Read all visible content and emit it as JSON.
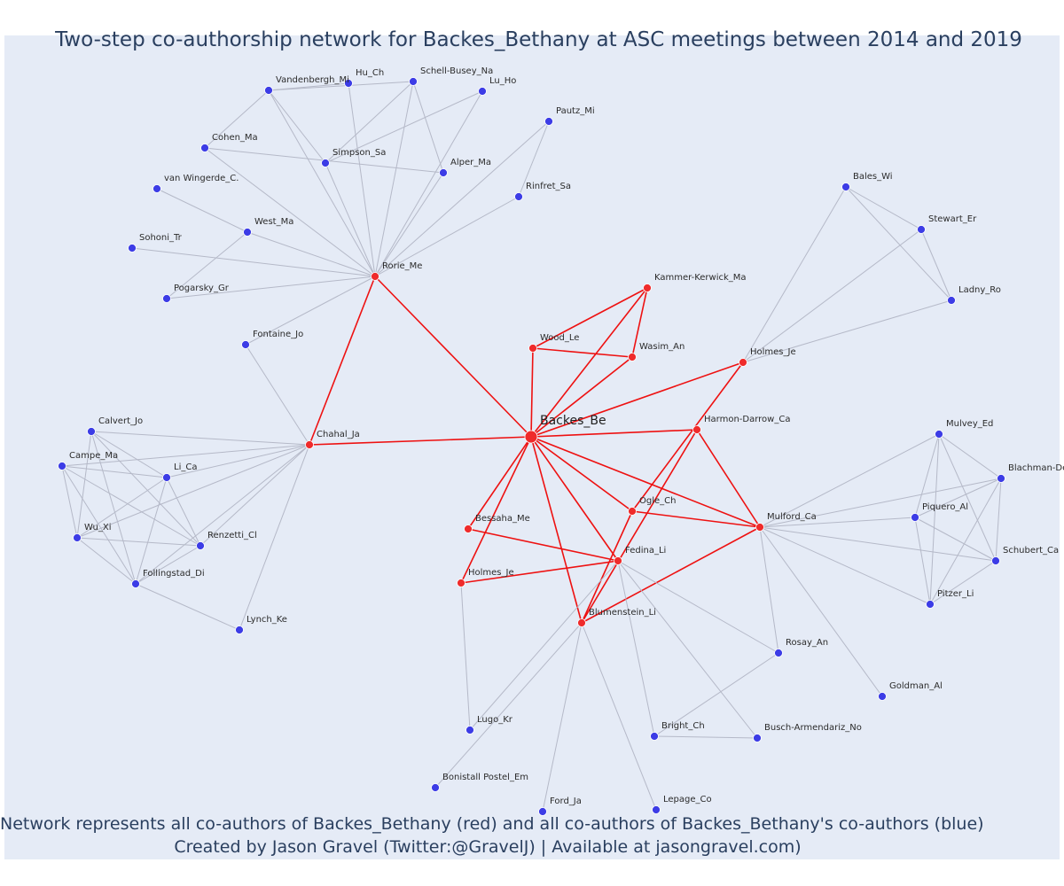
{
  "title": "Two-step co-authorship network for Backes_Bethany at ASC meetings between 2014 and 2019",
  "footer": {
    "line1": "Network represents all co-authors of Backes_Bethany (red) and all co-authors of Backes_Bethany's co-authors (blue)",
    "line2": "Created by Jason Gravel (Twitter:@GravelJ) | Available at jasongravel.com)"
  },
  "colors": {
    "background": "#e5ebf6",
    "coauthor_node": "#ef2b2b",
    "second_step_node": "#3c3ce6",
    "coauthor_edge": "#ee1111",
    "second_step_edge": "#b5b9c8",
    "text": "#2a3f5f"
  },
  "chart_data": {
    "type": "network",
    "focal": "Backes_Be",
    "nodes": [
      {
        "id": "Backes_Be",
        "group": "focal"
      },
      {
        "id": "Rorie_Me",
        "group": "coauthor"
      },
      {
        "id": "Chahal_Ja",
        "group": "coauthor"
      },
      {
        "id": "Kammer-Kerwick_Ma",
        "group": "coauthor"
      },
      {
        "id": "Wood_Le",
        "group": "coauthor"
      },
      {
        "id": "Wasim_An",
        "group": "coauthor"
      },
      {
        "id": "Holmes_Je",
        "group": "coauthor"
      },
      {
        "id": "Harmon-Darrow_Ca",
        "group": "coauthor"
      },
      {
        "id": "Ogle_Ch",
        "group": "coauthor"
      },
      {
        "id": "Bessaha_Me",
        "group": "coauthor"
      },
      {
        "id": "Mulford_Ca",
        "group": "coauthor"
      },
      {
        "id": "Fedina_Li",
        "group": "coauthor"
      },
      {
        "id": "Holmes_Je (2)",
        "label": "Holmes_Je",
        "group": "coauthor"
      },
      {
        "id": "Blumenstein_Li",
        "group": "coauthor"
      },
      {
        "id": "Vandenbergh_Mi",
        "group": "second"
      },
      {
        "id": "Hu_Ch",
        "group": "second"
      },
      {
        "id": "Schell-Busey_Na",
        "group": "second"
      },
      {
        "id": "Lu_Ho",
        "group": "second"
      },
      {
        "id": "Pautz_Mi",
        "group": "second"
      },
      {
        "id": "Cohen_Ma",
        "group": "second"
      },
      {
        "id": "Simpson_Sa",
        "group": "second"
      },
      {
        "id": "Alper_Ma",
        "group": "second"
      },
      {
        "id": "van Wingerde_C.",
        "group": "second"
      },
      {
        "id": "Rinfret_Sa",
        "group": "second"
      },
      {
        "id": "West_Ma",
        "group": "second"
      },
      {
        "id": "Sohoni_Tr",
        "group": "second"
      },
      {
        "id": "Pogarsky_Gr",
        "group": "second"
      },
      {
        "id": "Fontaine_Jo",
        "group": "second"
      },
      {
        "id": "Bales_Wi",
        "group": "second"
      },
      {
        "id": "Stewart_Er",
        "group": "second"
      },
      {
        "id": "Ladny_Ro",
        "group": "second"
      },
      {
        "id": "Calvert_Jo",
        "group": "second"
      },
      {
        "id": "Campe_Ma",
        "group": "second"
      },
      {
        "id": "Li_Ca",
        "group": "second"
      },
      {
        "id": "Wu_Xi",
        "group": "second"
      },
      {
        "id": "Renzetti_Cl",
        "group": "second"
      },
      {
        "id": "Follingstad_Di",
        "group": "second"
      },
      {
        "id": "Lynch_Ke",
        "group": "second"
      },
      {
        "id": "Mulvey_Ed",
        "group": "second"
      },
      {
        "id": "Blachman-De",
        "group": "second"
      },
      {
        "id": "Piquero_Al",
        "group": "second"
      },
      {
        "id": "Schubert_Ca",
        "group": "second"
      },
      {
        "id": "Pitzer_Li",
        "group": "second"
      },
      {
        "id": "Rosay_An",
        "group": "second"
      },
      {
        "id": "Goldman_Al",
        "group": "second"
      },
      {
        "id": "Lugo_Kr",
        "group": "second"
      },
      {
        "id": "Bright_Ch",
        "group": "second"
      },
      {
        "id": "Busch-Armendariz_No",
        "group": "second"
      },
      {
        "id": "Bonistall Postel_Em",
        "group": "second"
      },
      {
        "id": "Ford_Ja",
        "group": "second"
      },
      {
        "id": "Lepage_Co",
        "group": "second"
      }
    ],
    "edges": [
      [
        "Backes_Be",
        "Rorie_Me"
      ],
      [
        "Backes_Be",
        "Chahal_Ja"
      ],
      [
        "Backes_Be",
        "Kammer-Kerwick_Ma"
      ],
      [
        "Backes_Be",
        "Wood_Le"
      ],
      [
        "Backes_Be",
        "Wasim_An"
      ],
      [
        "Backes_Be",
        "Holmes_Je"
      ],
      [
        "Backes_Be",
        "Harmon-Darrow_Ca"
      ],
      [
        "Backes_Be",
        "Ogle_Ch"
      ],
      [
        "Backes_Be",
        "Bessaha_Me"
      ],
      [
        "Backes_Be",
        "Mulford_Ca"
      ],
      [
        "Backes_Be",
        "Fedina_Li"
      ],
      [
        "Backes_Be",
        "Holmes_Je (2)"
      ],
      [
        "Backes_Be",
        "Blumenstein_Li"
      ],
      [
        "Rorie_Me",
        "Chahal_Ja"
      ],
      [
        "Wood_Le",
        "Kammer-Kerwick_Ma"
      ],
      [
        "Wood_Le",
        "Wasim_An"
      ],
      [
        "Wasim_An",
        "Kammer-Kerwick_Ma"
      ],
      [
        "Harmon-Darrow_Ca",
        "Mulford_Ca"
      ],
      [
        "Harmon-Darrow_Ca",
        "Blumenstein_Li"
      ],
      [
        "Holmes_Je",
        "Ogle_Ch"
      ],
      [
        "Ogle_Ch",
        "Mulford_Ca"
      ],
      [
        "Ogle_Ch",
        "Blumenstein_Li"
      ],
      [
        "Bessaha_Me",
        "Fedina_Li"
      ],
      [
        "Holmes_Je (2)",
        "Fedina_Li"
      ],
      [
        "Mulford_Ca",
        "Blumenstein_Li"
      ],
      [
        "Rorie_Me",
        "Vandenbergh_Mi"
      ],
      [
        "Rorie_Me",
        "Hu_Ch"
      ],
      [
        "Rorie_Me",
        "Schell-Busey_Na"
      ],
      [
        "Rorie_Me",
        "Lu_Ho"
      ],
      [
        "Rorie_Me",
        "Pautz_Mi"
      ],
      [
        "Rorie_Me",
        "Cohen_Ma"
      ],
      [
        "Rorie_Me",
        "Simpson_Sa"
      ],
      [
        "Rorie_Me",
        "Alper_Ma"
      ],
      [
        "Rorie_Me",
        "Rinfret_Sa"
      ],
      [
        "Rorie_Me",
        "West_Ma"
      ],
      [
        "Rorie_Me",
        "Sohoni_Tr"
      ],
      [
        "Rorie_Me",
        "Pogarsky_Gr"
      ],
      [
        "Rorie_Me",
        "Fontaine_Jo"
      ],
      [
        "Vandenbergh_Mi",
        "Hu_Ch"
      ],
      [
        "Vandenbergh_Mi",
        "Schell-Busey_Na"
      ],
      [
        "Vandenbergh_Mi",
        "Simpson_Sa"
      ],
      [
        "Vandenbergh_Mi",
        "Cohen_Ma"
      ],
      [
        "Schell-Busey_Na",
        "Simpson_Sa"
      ],
      [
        "Schell-Busey_Na",
        "Alper_Ma"
      ],
      [
        "Lu_Ho",
        "Simpson_Sa"
      ],
      [
        "Cohen_Ma",
        "Alper_Ma"
      ],
      [
        "Pautz_Mi",
        "Rinfret_Sa"
      ],
      [
        "van Wingerde_C.",
        "West_Ma"
      ],
      [
        "West_Ma",
        "Pogarsky_Gr"
      ],
      [
        "Chahal_Ja",
        "Fontaine_Jo"
      ],
      [
        "Chahal_Ja",
        "Calvert_Jo"
      ],
      [
        "Chahal_Ja",
        "Campe_Ma"
      ],
      [
        "Chahal_Ja",
        "Li_Ca"
      ],
      [
        "Chahal_Ja",
        "Wu_Xi"
      ],
      [
        "Chahal_Ja",
        "Renzetti_Cl"
      ],
      [
        "Chahal_Ja",
        "Follingstad_Di"
      ],
      [
        "Chahal_Ja",
        "Lynch_Ke"
      ],
      [
        "Calvert_Jo",
        "Li_Ca"
      ],
      [
        "Calvert_Jo",
        "Wu_Xi"
      ],
      [
        "Calvert_Jo",
        "Renzetti_Cl"
      ],
      [
        "Calvert_Jo",
        "Follingstad_Di"
      ],
      [
        "Campe_Ma",
        "Li_Ca"
      ],
      [
        "Campe_Ma",
        "Wu_Xi"
      ],
      [
        "Campe_Ma",
        "Renzetti_Cl"
      ],
      [
        "Campe_Ma",
        "Follingstad_Di"
      ],
      [
        "Li_Ca",
        "Wu_Xi"
      ],
      [
        "Li_Ca",
        "Renzetti_Cl"
      ],
      [
        "Li_Ca",
        "Follingstad_Di"
      ],
      [
        "Wu_Xi",
        "Renzetti_Cl"
      ],
      [
        "Wu_Xi",
        "Follingstad_Di"
      ],
      [
        "Renzetti_Cl",
        "Follingstad_Di"
      ],
      [
        "Follingstad_Di",
        "Lynch_Ke"
      ],
      [
        "Holmes_Je",
        "Bales_Wi"
      ],
      [
        "Holmes_Je",
        "Stewart_Er"
      ],
      [
        "Holmes_Je",
        "Ladny_Ro"
      ],
      [
        "Bales_Wi",
        "Stewart_Er"
      ],
      [
        "Bales_Wi",
        "Ladny_Ro"
      ],
      [
        "Stewart_Er",
        "Ladny_Ro"
      ],
      [
        "Mulford_Ca",
        "Mulvey_Ed"
      ],
      [
        "Mulford_Ca",
        "Blachman-De"
      ],
      [
        "Mulford_Ca",
        "Piquero_Al"
      ],
      [
        "Mulford_Ca",
        "Schubert_Ca"
      ],
      [
        "Mulford_Ca",
        "Pitzer_Li"
      ],
      [
        "Mulford_Ca",
        "Rosay_An"
      ],
      [
        "Mulford_Ca",
        "Goldman_Al"
      ],
      [
        "Mulvey_Ed",
        "Piquero_Al"
      ],
      [
        "Mulvey_Ed",
        "Schubert_Ca"
      ],
      [
        "Mulvey_Ed",
        "Pitzer_Li"
      ],
      [
        "Mulvey_Ed",
        "Blachman-De"
      ],
      [
        "Blachman-De",
        "Piquero_Al"
      ],
      [
        "Blachman-De",
        "Schubert_Ca"
      ],
      [
        "Blachman-De",
        "Pitzer_Li"
      ],
      [
        "Piquero_Al",
        "Schubert_Ca"
      ],
      [
        "Piquero_Al",
        "Pitzer_Li"
      ],
      [
        "Schubert_Ca",
        "Pitzer_Li"
      ],
      [
        "Fedina_Li",
        "Bright_Ch"
      ],
      [
        "Fedina_Li",
        "Busch-Armendariz_No"
      ],
      [
        "Fedina_Li",
        "Rosay_An"
      ],
      [
        "Fedina_Li",
        "Lugo_Kr"
      ],
      [
        "Blumenstein_Li",
        "Bonistall Postel_Em"
      ],
      [
        "Blumenstein_Li",
        "Ford_Ja"
      ],
      [
        "Blumenstein_Li",
        "Lepage_Co"
      ],
      [
        "Holmes_Je (2)",
        "Lugo_Kr"
      ],
      [
        "Bright_Ch",
        "Busch-Armendariz_No"
      ],
      [
        "Bright_Ch",
        "Rosay_An"
      ]
    ]
  }
}
